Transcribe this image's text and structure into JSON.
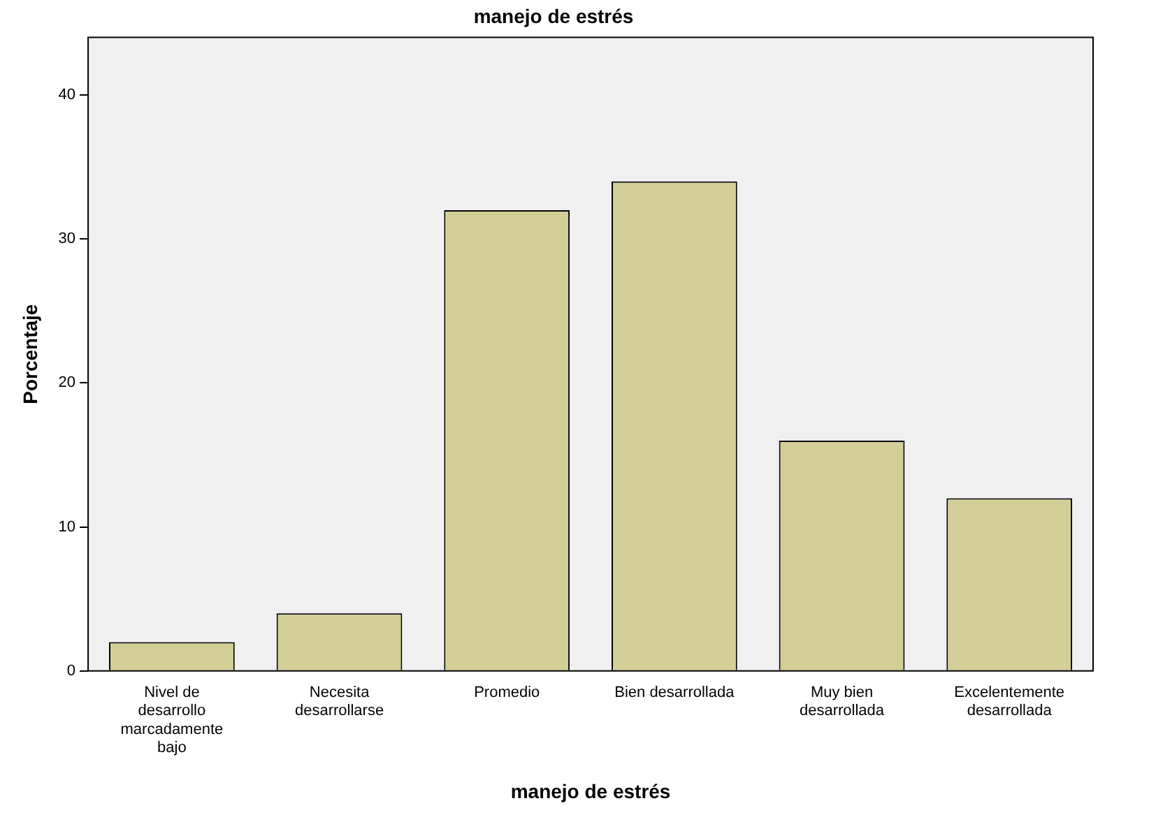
{
  "chart_data": {
    "type": "bar",
    "title": "manejo de estrés",
    "xlabel": "manejo de estrés",
    "ylabel": "Porcentaje",
    "categories": [
      "Nivel de\ndesarrollo\nmarcadamente\nbajo",
      "Necesita\ndesarrollarse",
      "Promedio",
      "Bien desarrollada",
      "Muy bien\ndesarrollada",
      "Excelentemente\ndesarrollada"
    ],
    "values": [
      2,
      4,
      32,
      34,
      16,
      12
    ],
    "color": "#d3ce97",
    "ylim": [
      0,
      44
    ],
    "yticks": [
      0,
      10,
      20,
      30,
      40
    ],
    "grid": false,
    "legend": false
  }
}
